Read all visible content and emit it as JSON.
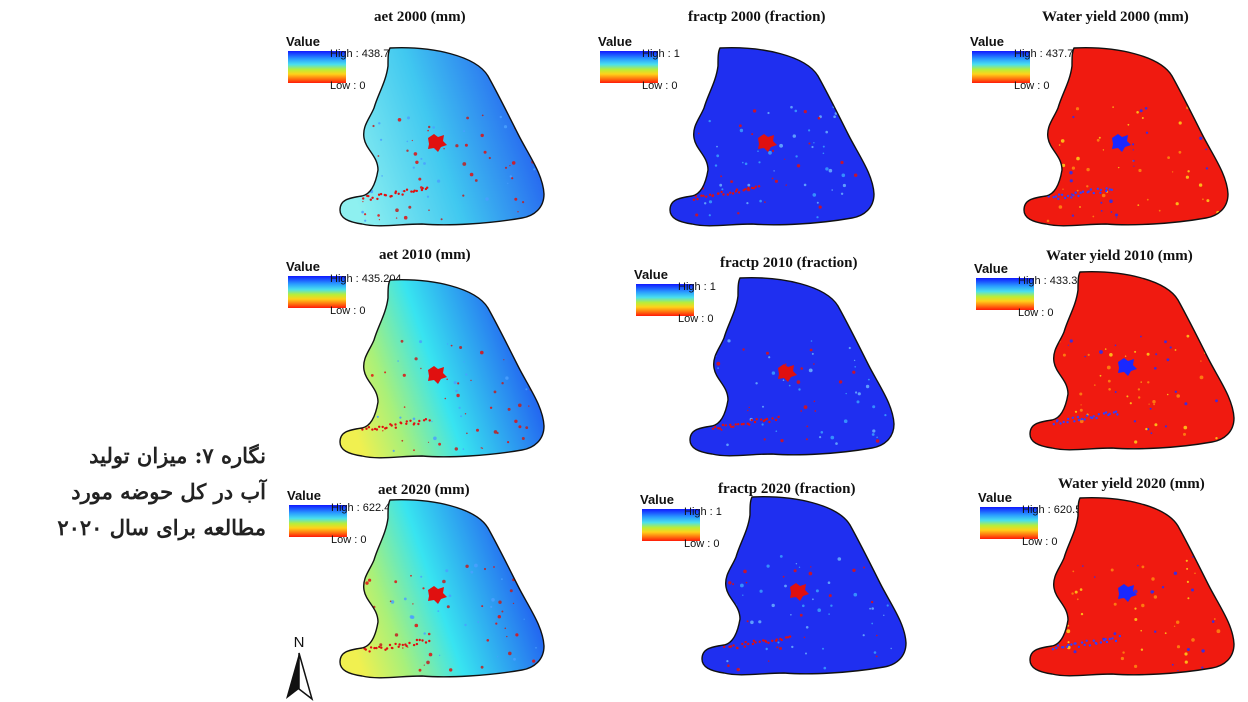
{
  "caption": {
    "lines": [
      "نگاره ۷: میزان تولید",
      "آب در کل حوضه مورد",
      "مطالعه برای سال ۲۰۲۰"
    ]
  },
  "legend_title": "Value",
  "north_label": "N",
  "panels": [
    {
      "title": "aet 2000 (mm)",
      "high": "High : 438.765",
      "low": "Low : 0",
      "style": "aet-2000"
    },
    {
      "title": "fractp 2000 (fraction)",
      "high": "High : 1",
      "low": "Low : 0",
      "style": "fractp"
    },
    {
      "title": "Water yield 2000 (mm)",
      "high": "High : 437.747",
      "low": "Low : 0",
      "style": "wy"
    },
    {
      "title": "aet 2010 (mm)",
      "high": "High : 435.204",
      "low": "Low : 0",
      "style": "aet-2010"
    },
    {
      "title": "fractp 2010 (fraction)",
      "high": "High : 1",
      "low": "Low : 0",
      "style": "fractp"
    },
    {
      "title": "Water yield 2010 (mm)",
      "high": "High : 433.355",
      "low": "Low : 0",
      "style": "wy"
    },
    {
      "title": "aet 2020 (mm)",
      "high": "High : 622.414",
      "low": "Low : 0",
      "style": "aet-2020"
    },
    {
      "title": "fractp 2020 (fraction)",
      "high": "High : 1",
      "low": "Low : 0",
      "style": "fractp"
    },
    {
      "title": "Water yield 2020 (mm)",
      "high": "High : 620.586",
      "low": "Low : 0",
      "style": "wy"
    }
  ]
}
